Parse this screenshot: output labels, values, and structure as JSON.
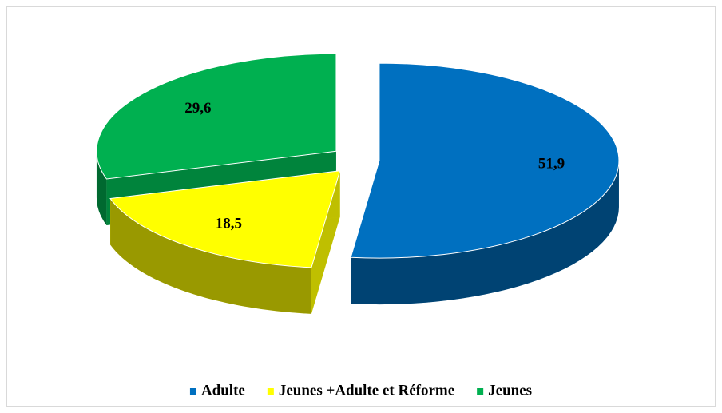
{
  "chart_data": {
    "type": "pie",
    "categories": [
      "Adulte",
      "Jeunes +Adulte et Réforme",
      "Jeunes"
    ],
    "values": [
      51.9,
      18.5,
      29.6
    ],
    "value_labels": [
      "51,9",
      "18,5",
      "29,6"
    ],
    "colors": [
      "#0070c0",
      "#ffff00",
      "#00b050"
    ],
    "legend": "bottom"
  }
}
